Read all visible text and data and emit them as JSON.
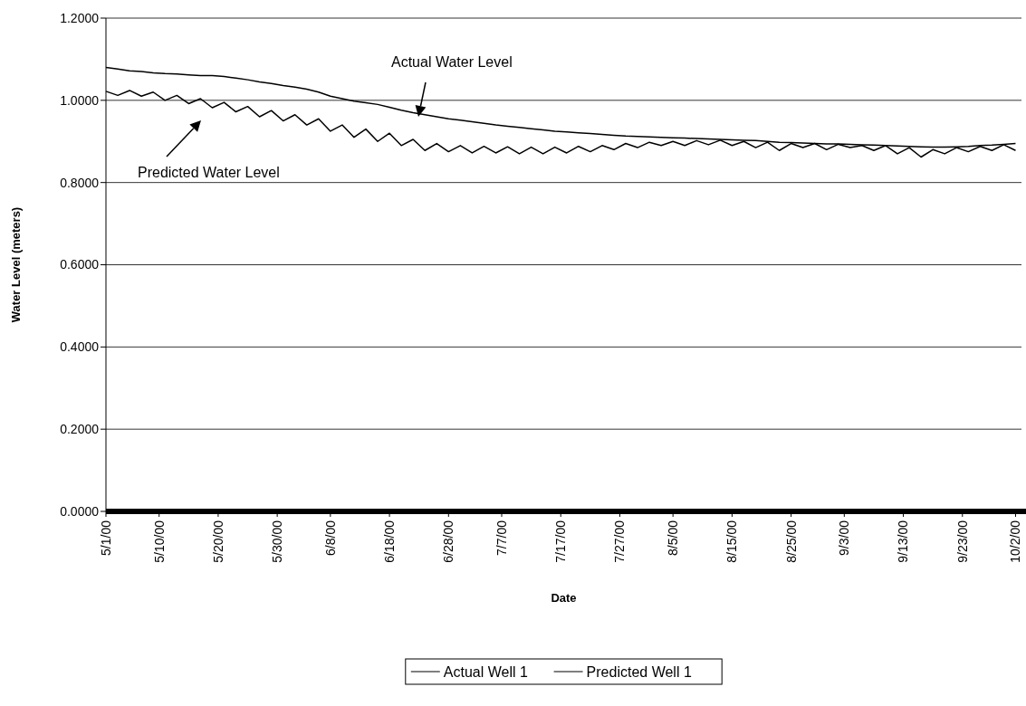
{
  "chart_data": {
    "type": "line",
    "xlabel": "Date",
    "ylabel": "Water Level (meters)",
    "x": [
      "2000-05-01",
      "2000-05-03",
      "2000-05-05",
      "2000-05-07",
      "2000-05-09",
      "2000-05-11",
      "2000-05-13",
      "2000-05-15",
      "2000-05-17",
      "2000-05-19",
      "2000-05-21",
      "2000-05-23",
      "2000-05-25",
      "2000-05-27",
      "2000-05-29",
      "2000-05-31",
      "2000-06-02",
      "2000-06-04",
      "2000-06-06",
      "2000-06-08",
      "2000-06-10",
      "2000-06-12",
      "2000-06-14",
      "2000-06-16",
      "2000-06-18",
      "2000-06-20",
      "2000-06-22",
      "2000-06-24",
      "2000-06-26",
      "2000-06-28",
      "2000-06-30",
      "2000-07-02",
      "2000-07-04",
      "2000-07-06",
      "2000-07-08",
      "2000-07-10",
      "2000-07-12",
      "2000-07-14",
      "2000-07-16",
      "2000-07-18",
      "2000-07-20",
      "2000-07-22",
      "2000-07-24",
      "2000-07-26",
      "2000-07-28",
      "2000-07-30",
      "2000-08-01",
      "2000-08-03",
      "2000-08-05",
      "2000-08-07",
      "2000-08-09",
      "2000-08-11",
      "2000-08-13",
      "2000-08-15",
      "2000-08-17",
      "2000-08-19",
      "2000-08-21",
      "2000-08-23",
      "2000-08-25",
      "2000-08-27",
      "2000-08-29",
      "2000-08-31",
      "2000-09-02",
      "2000-09-04",
      "2000-09-06",
      "2000-09-08",
      "2000-09-10",
      "2000-09-12",
      "2000-09-14",
      "2000-09-16",
      "2000-09-18",
      "2000-09-20",
      "2000-09-22",
      "2000-09-24",
      "2000-09-26",
      "2000-09-28",
      "2000-09-30",
      "2000-10-02"
    ],
    "series": [
      {
        "name": "Actual Well 1",
        "color": "#000000",
        "values": [
          1.08,
          1.076,
          1.072,
          1.07,
          1.067,
          1.065,
          1.064,
          1.062,
          1.06,
          1.06,
          1.058,
          1.054,
          1.05,
          1.045,
          1.041,
          1.036,
          1.032,
          1.027,
          1.02,
          1.01,
          1.004,
          0.998,
          0.994,
          0.99,
          0.983,
          0.976,
          0.97,
          0.965,
          0.96,
          0.955,
          0.952,
          0.948,
          0.944,
          0.94,
          0.937,
          0.934,
          0.931,
          0.928,
          0.925,
          0.923,
          0.921,
          0.919,
          0.917,
          0.915,
          0.913,
          0.912,
          0.911,
          0.91,
          0.909,
          0.908,
          0.907,
          0.906,
          0.905,
          0.904,
          0.903,
          0.902,
          0.9,
          0.898,
          0.897,
          0.896,
          0.895,
          0.894,
          0.894,
          0.893,
          0.892,
          0.891,
          0.89,
          0.889,
          0.888,
          0.887,
          0.886,
          0.886,
          0.887,
          0.888,
          0.89,
          0.891,
          0.893,
          0.895
        ]
      },
      {
        "name": "Predicted Well 1",
        "color": "#000000",
        "values": [
          1.022,
          1.012,
          1.024,
          1.01,
          1.02,
          1.0,
          1.012,
          0.992,
          1.004,
          0.982,
          0.995,
          0.972,
          0.985,
          0.96,
          0.975,
          0.95,
          0.965,
          0.94,
          0.955,
          0.925,
          0.94,
          0.91,
          0.93,
          0.9,
          0.92,
          0.89,
          0.905,
          0.878,
          0.895,
          0.875,
          0.89,
          0.872,
          0.888,
          0.872,
          0.887,
          0.87,
          0.886,
          0.87,
          0.886,
          0.872,
          0.888,
          0.875,
          0.89,
          0.88,
          0.895,
          0.885,
          0.898,
          0.89,
          0.9,
          0.89,
          0.902,
          0.892,
          0.903,
          0.89,
          0.9,
          0.885,
          0.898,
          0.878,
          0.895,
          0.885,
          0.895,
          0.88,
          0.893,
          0.885,
          0.89,
          0.878,
          0.89,
          0.87,
          0.885,
          0.862,
          0.88,
          0.87,
          0.885,
          0.875,
          0.888,
          0.878,
          0.892,
          0.878
        ]
      }
    ],
    "xlim": [
      "2000-05-01",
      "2000-10-03"
    ],
    "xticks": [
      {
        "value": "2000-05-01",
        "label": "5/1/00"
      },
      {
        "value": "2000-05-10",
        "label": "5/10/00"
      },
      {
        "value": "2000-05-20",
        "label": "5/20/00"
      },
      {
        "value": "2000-05-30",
        "label": "5/30/00"
      },
      {
        "value": "2000-06-08",
        "label": "6/8/00"
      },
      {
        "value": "2000-06-18",
        "label": "6/18/00"
      },
      {
        "value": "2000-06-28",
        "label": "6/28/00"
      },
      {
        "value": "2000-07-07",
        "label": "7/7/00"
      },
      {
        "value": "2000-07-17",
        "label": "7/17/00"
      },
      {
        "value": "2000-07-27",
        "label": "7/27/00"
      },
      {
        "value": "2000-08-05",
        "label": "8/5/00"
      },
      {
        "value": "2000-08-15",
        "label": "8/15/00"
      },
      {
        "value": "2000-08-25",
        "label": "8/25/00"
      },
      {
        "value": "2000-09-03",
        "label": "9/3/00"
      },
      {
        "value": "2000-09-13",
        "label": "9/13/00"
      },
      {
        "value": "2000-09-23",
        "label": "9/23/00"
      },
      {
        "value": "2000-10-02",
        "label": "10/2/00"
      }
    ],
    "ylim": [
      0,
      1.2
    ],
    "yticks": [
      {
        "value": 0,
        "label": "0.0000"
      },
      {
        "value": 0.2,
        "label": "0.2000"
      },
      {
        "value": 0.4,
        "label": "0.4000"
      },
      {
        "value": 0.6,
        "label": "0.6000"
      },
      {
        "value": 0.8,
        "label": "0.8000"
      },
      {
        "value": 1,
        "label": "1.0000"
      },
      {
        "value": 1.2,
        "label": "1.2000"
      }
    ],
    "grid": "y",
    "legend": "bottom",
    "marker": "none",
    "line_style": "solid",
    "annotations": [
      "Actual Water Level",
      "Predicted Water Level"
    ]
  }
}
